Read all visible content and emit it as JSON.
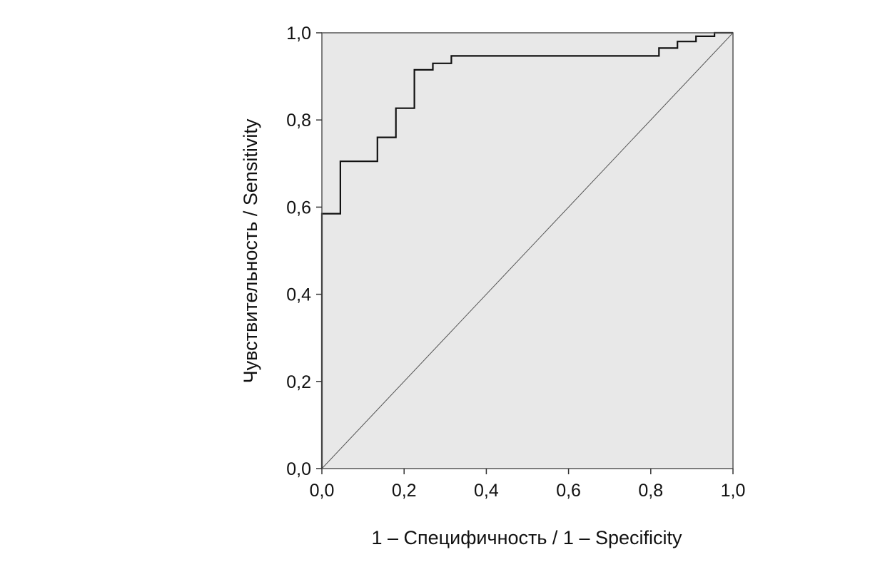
{
  "chart_data": {
    "type": "line",
    "title": "",
    "xlabel": "1 – Специфичность / 1 – Specificity",
    "ylabel": "Чувствительность / Sensitivity",
    "xlim": [
      0.0,
      1.0
    ],
    "ylim": [
      0.0,
      1.0
    ],
    "x_ticks": [
      "0,0",
      "0,2",
      "0,4",
      "0,6",
      "0,8",
      "1,0"
    ],
    "y_ticks": [
      "0,0",
      "0,2",
      "0,4",
      "0,6",
      "0,8",
      "1,0"
    ],
    "grid": false,
    "legend": "none",
    "plot_background": "#e8e8e8",
    "series": [
      {
        "style": "step",
        "color": "#111111",
        "x": [
          0.0,
          0.0,
          0.045,
          0.045,
          0.135,
          0.135,
          0.18,
          0.18,
          0.225,
          0.225,
          0.27,
          0.27,
          0.315,
          0.315,
          0.82,
          0.82,
          0.865,
          0.865,
          0.91,
          0.91,
          0.955,
          0.955,
          1.0
        ],
        "y": [
          0.0,
          0.585,
          0.585,
          0.705,
          0.705,
          0.76,
          0.76,
          0.827,
          0.827,
          0.915,
          0.915,
          0.93,
          0.93,
          0.947,
          0.947,
          0.965,
          0.965,
          0.98,
          0.98,
          0.992,
          0.992,
          1.0,
          1.0
        ]
      },
      {
        "style": "diagonal-reference",
        "color": "#555555",
        "x": [
          0.0,
          1.0
        ],
        "y": [
          0.0,
          1.0
        ]
      }
    ]
  }
}
